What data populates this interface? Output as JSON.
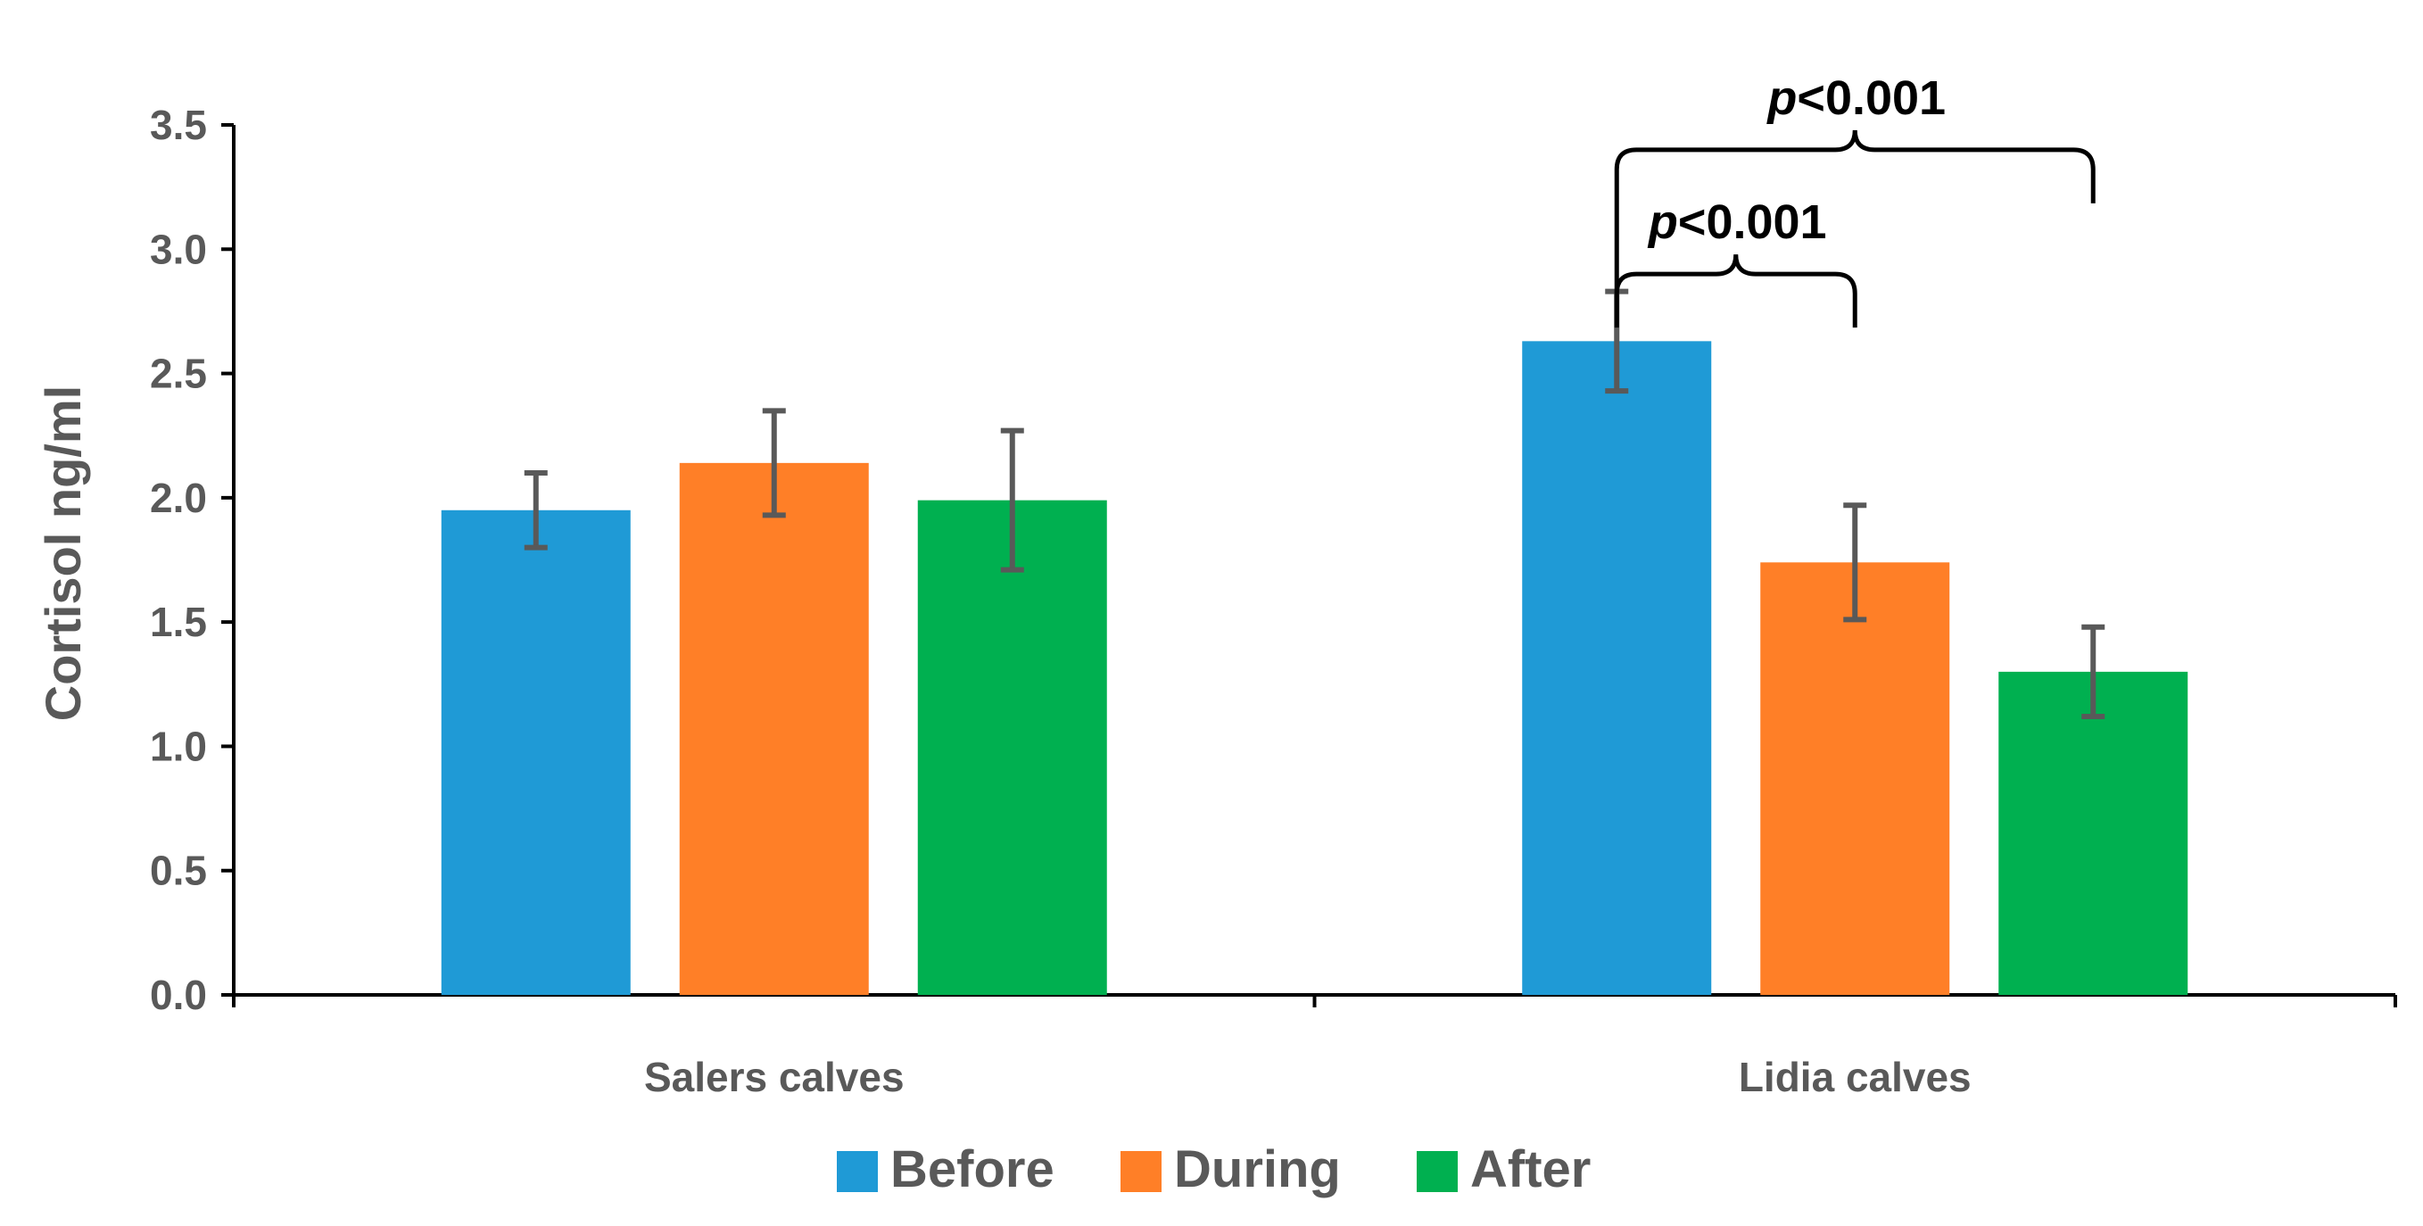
{
  "chart_data": {
    "type": "bar",
    "title": "",
    "xlabel": "",
    "ylabel": "Cortisol  ng/ml",
    "ylim": [
      0,
      3.5
    ],
    "yticks": [
      "0.0",
      "0.5",
      "1.0",
      "1.5",
      "2.0",
      "2.5",
      "3.0",
      "3.5"
    ],
    "categories": [
      "Salers calves",
      "Lidia calves"
    ],
    "series": [
      {
        "name": "Before",
        "color": "#1f9ad6",
        "values": [
          1.95,
          2.63
        ],
        "errors": [
          0.15,
          0.2
        ]
      },
      {
        "name": "During",
        "color": "#ff7f27",
        "values": [
          2.14,
          1.74
        ],
        "errors": [
          0.21,
          0.23
        ]
      },
      {
        "name": "After",
        "color": "#00b050",
        "values": [
          1.99,
          1.3
        ],
        "errors": [
          0.28,
          0.18
        ]
      }
    ],
    "annotations": [
      {
        "category": "Lidia calves",
        "from": "Before",
        "to": "During",
        "prefix": "p",
        "text": "<0.001",
        "level": 2.9
      },
      {
        "category": "Lidia calves",
        "from": "Before",
        "to": "After",
        "prefix": "p",
        "text": "<0.001",
        "level": 3.4
      }
    ],
    "legend_position": "bottom",
    "grid": false
  },
  "colors": {
    "axis": "#000000",
    "tick_text": "#595959",
    "error_bar": "#595959",
    "annotation": "#000000"
  }
}
